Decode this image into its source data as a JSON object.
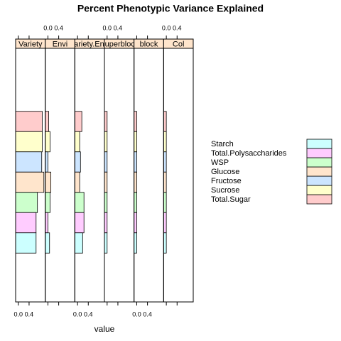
{
  "chart_data": {
    "type": "bar",
    "title": "Percent Phenotypic Variance Explained",
    "xlabel": "value",
    "panels": [
      "Variety",
      "Envi",
      "Variety.Envi",
      "Superblock",
      "block",
      "Col"
    ],
    "strip_color": "#ffe5cc",
    "series": [
      {
        "name": "Total.Sugar",
        "color": "#ffcccc",
        "values": [
          0.89,
          0.03,
          0.16,
          0,
          0,
          0
        ]
      },
      {
        "name": "Sucrose",
        "color": "#ffffcc",
        "values": [
          0.89,
          0.08,
          0.08,
          0,
          0,
          0
        ]
      },
      {
        "name": "Fructose",
        "color": "#cce5ff",
        "values": [
          0.87,
          0,
          0.11,
          0,
          0,
          0
        ]
      },
      {
        "name": "Glucose",
        "color": "#ffe5cc",
        "values": [
          0.95,
          0.11,
          0.08,
          0,
          0,
          0
        ]
      },
      {
        "name": "WSP",
        "color": "#ccffcc",
        "values": [
          0.71,
          0.08,
          0.24,
          0,
          0,
          0
        ]
      },
      {
        "name": "Total.Polysaccharides",
        "color": "#ffccff",
        "values": [
          0.66,
          0,
          0.24,
          0,
          0,
          0
        ]
      },
      {
        "name": "Starch",
        "color": "#ccffff",
        "values": [
          0.66,
          0.06,
          0.19,
          0,
          0,
          0
        ]
      }
    ],
    "xlim": [
      -0.1,
      1.0
    ],
    "xticks": [
      {
        "value": 0,
        "label": "0.0"
      },
      {
        "value": 0.4,
        "label": "0.4"
      }
    ]
  }
}
